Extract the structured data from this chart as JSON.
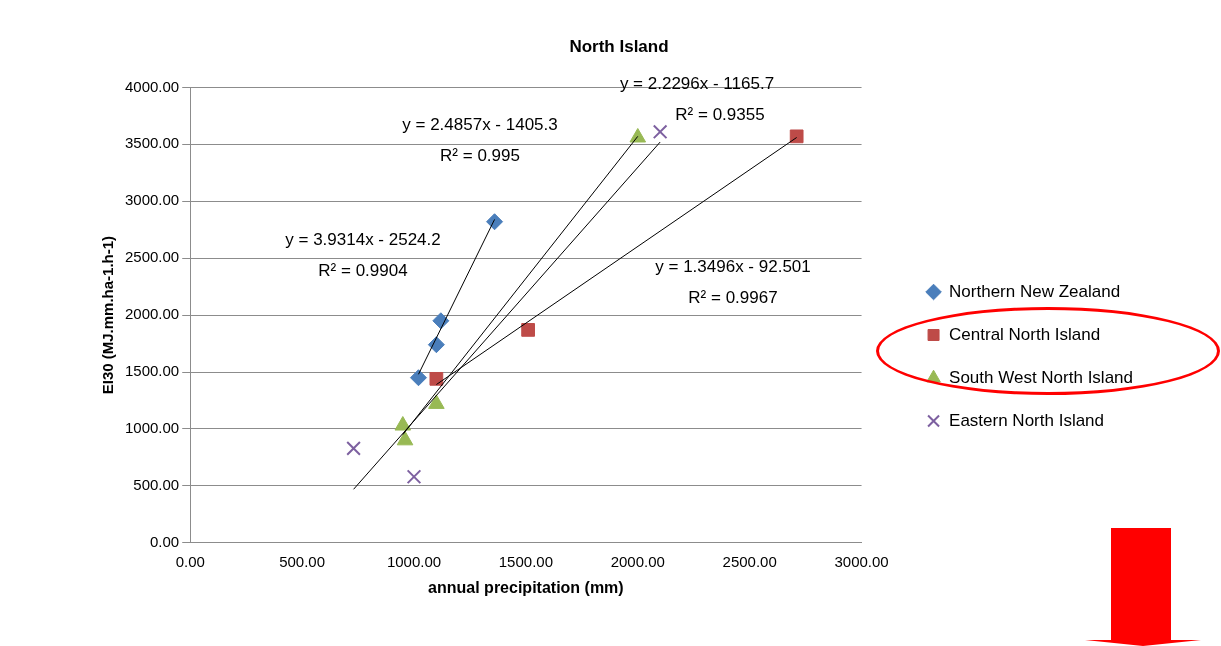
{
  "chart_data": {
    "type": "scatter",
    "title": "North Island",
    "xlabel": "annual precipitation (mm)",
    "ylabel": "EI30 (MJ.mm.ha-1.h-1)",
    "xlim": [
      0,
      3000
    ],
    "xticks": [
      {
        "value": 0,
        "label": "0.00"
      },
      {
        "value": 500,
        "label": "500.00"
      },
      {
        "value": 1000,
        "label": "1000.00"
      },
      {
        "value": 1500,
        "label": "1500.00"
      },
      {
        "value": 2000,
        "label": "2000.00"
      },
      {
        "value": 2500,
        "label": "2500.00"
      },
      {
        "value": 3000,
        "label": "3000.00"
      }
    ],
    "ylim": [
      0,
      4000
    ],
    "yticks": [
      {
        "value": 0,
        "label": "0.00"
      },
      {
        "value": 500,
        "label": "500.00"
      },
      {
        "value": 1000,
        "label": "1000.00"
      },
      {
        "value": 1500,
        "label": "1500.00"
      },
      {
        "value": 2000,
        "label": "2000.00"
      },
      {
        "value": 2500,
        "label": "2500.00"
      },
      {
        "value": 3000,
        "label": "3000.00"
      },
      {
        "value": 3500,
        "label": "3500.00"
      },
      {
        "value": 4000,
        "label": "4000.00"
      }
    ],
    "grid": "y",
    "legend": "right",
    "series": [
      {
        "name": "Northern New Zealand",
        "color": "#4a7ebb",
        "marker": "diamond",
        "x": [
          1020,
          1100,
          1120,
          1360
        ],
        "values": [
          1450,
          1740,
          1950,
          2820
        ]
      },
      {
        "name": "Central North Island",
        "color": "#be4b48",
        "marker": "square",
        "x": [
          1100,
          1510,
          2710
        ],
        "values": [
          1440,
          1870,
          3570
        ]
      },
      {
        "name": "South West North Island",
        "color": "#98b954",
        "marker": "triangle",
        "x": [
          950,
          960,
          1100,
          2000
        ],
        "values": [
          1030,
          900,
          1220,
          3560
        ]
      },
      {
        "name": "Eastern North Island",
        "color": "#7d60a0",
        "marker": "cross",
        "x": [
          730,
          1000,
          2100
        ],
        "values": [
          830,
          580,
          3610
        ]
      },
      {
        "type": "line",
        "color": "#000000",
        "marker": "none",
        "x": [
          1020,
          1360
        ],
        "values": [
          1480,
          2840
        ]
      },
      {
        "type": "line",
        "color": "#000000",
        "marker": "none",
        "x": [
          1100,
          2710
        ],
        "values": [
          1390,
          3560
        ]
      },
      {
        "type": "line",
        "color": "#000000",
        "marker": "none",
        "x": [
          950,
          2000
        ],
        "values": [
          950,
          3570
        ]
      },
      {
        "type": "line",
        "color": "#000000",
        "marker": "none",
        "x": [
          730,
          2100
        ],
        "values": [
          470,
          3520
        ]
      }
    ],
    "annotations": [
      "y = 3.9314x - 2524.2",
      "R² = 0.9904",
      "y = 1.3496x - 92.501",
      "R² = 0.9967",
      "y = 2.4857x - 1405.3",
      "R² = 0.995",
      "y = 2.2296x - 1165.7",
      "R² = 0.9355"
    ]
  }
}
